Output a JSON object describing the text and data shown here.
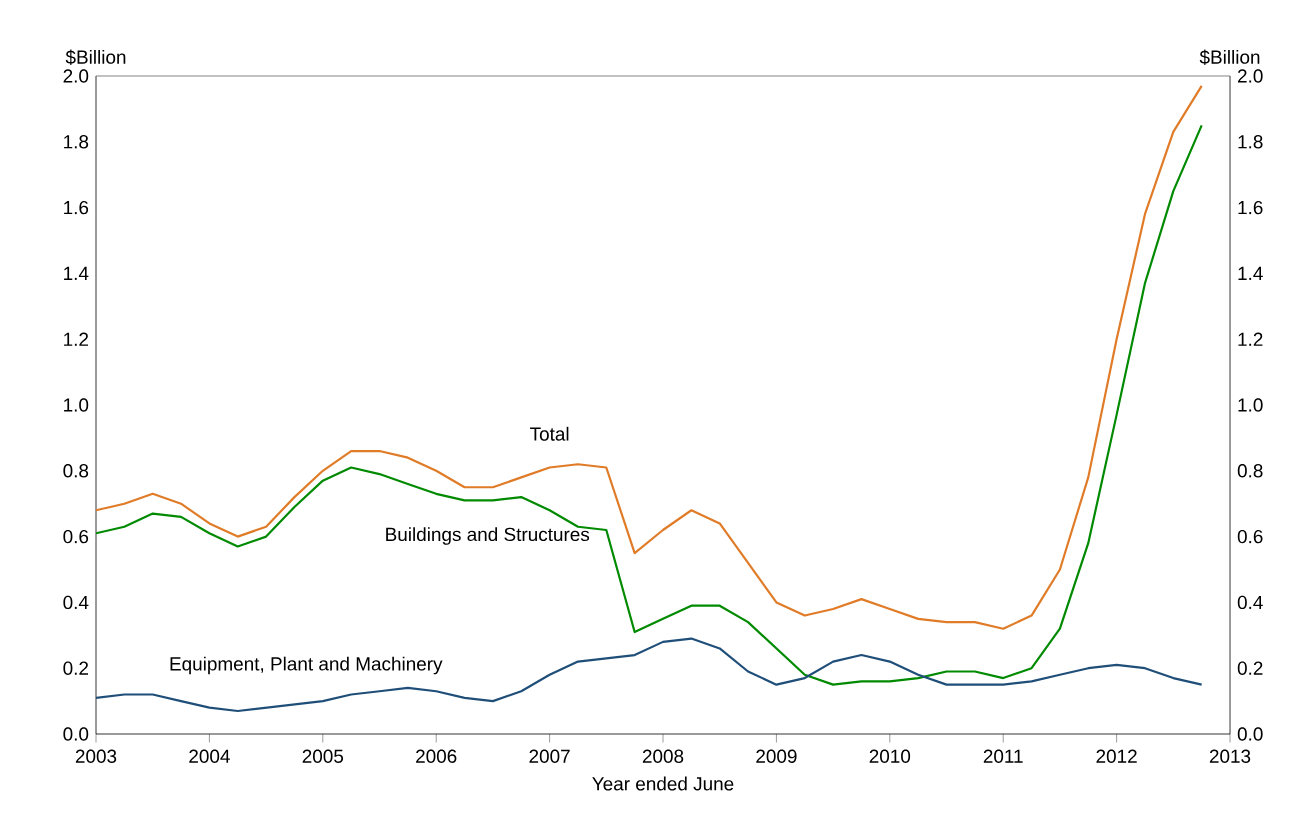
{
  "chart_data": {
    "type": "line",
    "xlabel": "Year ended June",
    "ylabel": "$Billion",
    "y2label": "$Billion",
    "x": [
      2003.0,
      2003.25,
      2003.5,
      2003.75,
      2004.0,
      2004.25,
      2004.5,
      2004.75,
      2005.0,
      2005.25,
      2005.5,
      2005.75,
      2006.0,
      2006.25,
      2006.5,
      2006.75,
      2007.0,
      2007.25,
      2007.5,
      2007.75,
      2008.0,
      2008.25,
      2008.5,
      2008.75,
      2009.0,
      2009.25,
      2009.5,
      2009.75,
      2010.0,
      2010.25,
      2010.5,
      2010.75,
      2011.0,
      2011.25,
      2011.5,
      2011.75,
      2012.0,
      2012.25,
      2012.5,
      2012.75
    ],
    "series": [
      {
        "name": "Total",
        "color": "#e07b28",
        "values": [
          0.68,
          0.7,
          0.73,
          0.7,
          0.64,
          0.6,
          0.63,
          0.72,
          0.8,
          0.86,
          0.86,
          0.84,
          0.8,
          0.75,
          0.75,
          0.78,
          0.81,
          0.82,
          0.81,
          0.55,
          0.62,
          0.68,
          0.64,
          0.52,
          0.4,
          0.36,
          0.38,
          0.41,
          0.38,
          0.35,
          0.34,
          0.34,
          0.32,
          0.36,
          0.5,
          0.78,
          1.2,
          1.58,
          1.83,
          1.97
        ]
      },
      {
        "name": "Buildings and Structures",
        "color": "#008a00",
        "values": [
          0.61,
          0.63,
          0.67,
          0.66,
          0.61,
          0.57,
          0.6,
          0.69,
          0.77,
          0.81,
          0.79,
          0.76,
          0.73,
          0.71,
          0.71,
          0.72,
          0.68,
          0.63,
          0.62,
          0.31,
          0.35,
          0.39,
          0.39,
          0.34,
          0.26,
          0.18,
          0.15,
          0.16,
          0.16,
          0.17,
          0.19,
          0.19,
          0.17,
          0.2,
          0.32,
          0.58,
          0.97,
          1.37,
          1.65,
          1.85
        ]
      },
      {
        "name": "Equipment, Plant and Machinery",
        "color": "#1f4e79",
        "values": [
          0.11,
          0.12,
          0.12,
          0.1,
          0.08,
          0.07,
          0.08,
          0.09,
          0.1,
          0.12,
          0.13,
          0.14,
          0.13,
          0.11,
          0.1,
          0.13,
          0.18,
          0.22,
          0.23,
          0.24,
          0.28,
          0.29,
          0.26,
          0.19,
          0.15,
          0.17,
          0.22,
          0.24,
          0.22,
          0.18,
          0.15,
          0.15,
          0.15,
          0.16,
          0.18,
          0.2,
          0.21,
          0.2,
          0.17,
          0.15
        ]
      }
    ],
    "xlim": [
      2003,
      2013
    ],
    "xticks": [
      2003,
      2004,
      2005,
      2006,
      2007,
      2008,
      2009,
      2010,
      2011,
      2012,
      2013
    ],
    "ylim": [
      0,
      2
    ],
    "yticks": [
      {
        "value": 0,
        "label": "0.0"
      },
      {
        "value": 0.2,
        "label": "0.2"
      },
      {
        "value": 0.4,
        "label": "0.4"
      },
      {
        "value": 0.6,
        "label": "0.6"
      },
      {
        "value": 0.8,
        "label": "0.8"
      },
      {
        "value": 1.0,
        "label": "1.0"
      },
      {
        "value": 1.2,
        "label": "1.2"
      },
      {
        "value": 1.4,
        "label": "1.4"
      },
      {
        "value": 1.6,
        "label": "1.6"
      },
      {
        "value": 1.8,
        "label": "1.8"
      },
      {
        "value": 2.0,
        "label": "2.0"
      }
    ],
    "y2lim": [
      0,
      2
    ],
    "y2ticks": [
      {
        "value": 0,
        "label": "0.0"
      },
      {
        "value": 0.2,
        "label": "0.2"
      },
      {
        "value": 0.4,
        "label": "0.4"
      },
      {
        "value": 0.6,
        "label": "0.6"
      },
      {
        "value": 0.8,
        "label": "0.8"
      },
      {
        "value": 1.0,
        "label": "1.0"
      },
      {
        "value": 1.2,
        "label": "1.2"
      },
      {
        "value": 1.4,
        "label": "1.4"
      },
      {
        "value": 1.6,
        "label": "1.6"
      },
      {
        "value": 1.8,
        "label": "1.8"
      },
      {
        "value": 2.0,
        "label": "2.0"
      }
    ],
    "grid": false,
    "legend": false,
    "marker": "none",
    "line_style": "solid"
  }
}
